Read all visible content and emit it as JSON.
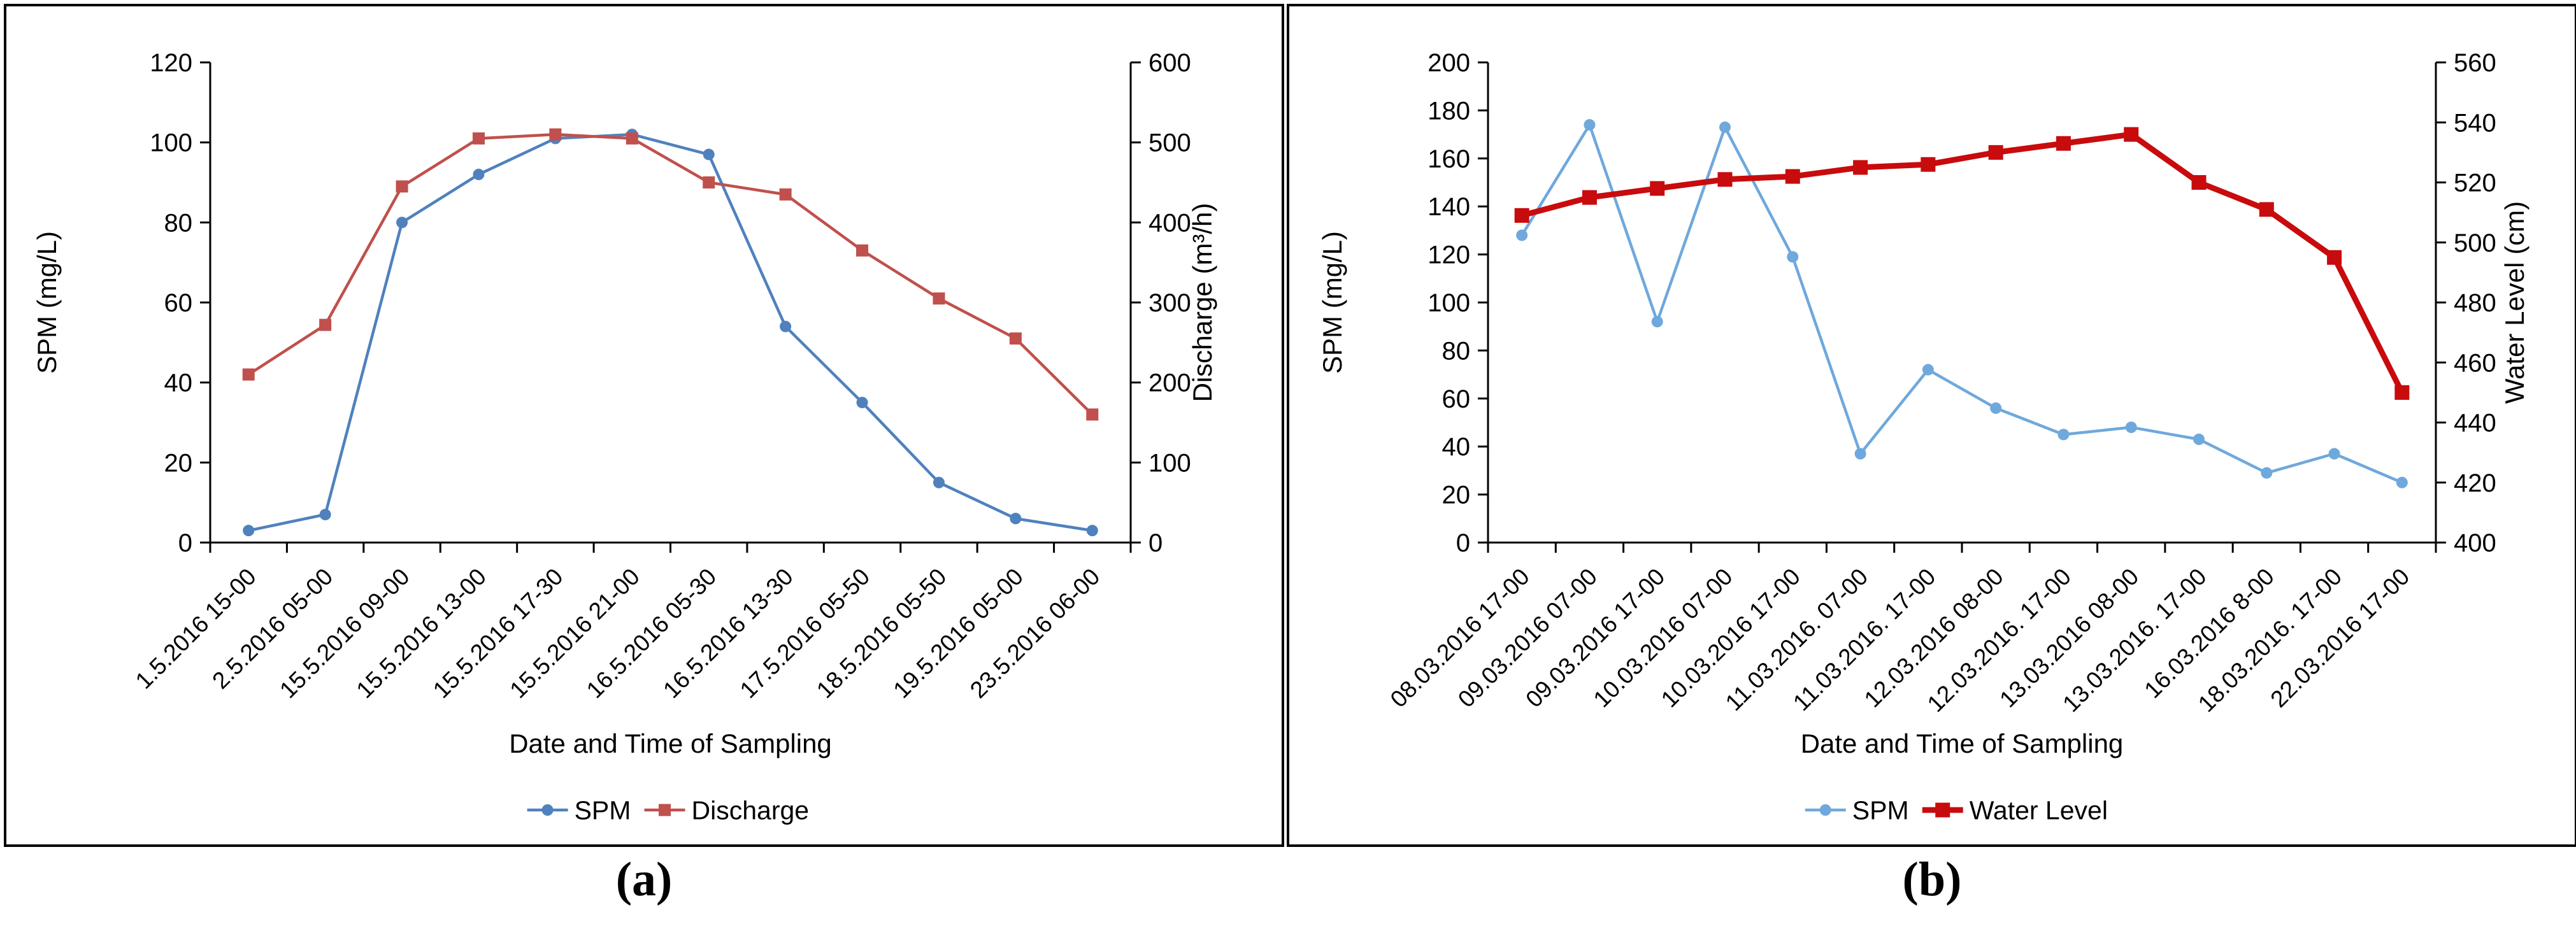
{
  "chart_data": [
    {
      "id": "a",
      "type": "line",
      "caption": "(a)",
      "x_title": "Date and Time of Sampling",
      "y_left": {
        "title": "SPM (mg/L)",
        "min": 0,
        "max": 120,
        "step": 20
      },
      "y_right": {
        "title": "Discharge (m³/h)",
        "min": 0,
        "max": 600,
        "step": 100
      },
      "categories": [
        "1.5.2016 15-00",
        "2.5.2016 05-00",
        "15.5.2016 09-00",
        "15.5.2016 13-00",
        "15.5.2016 17-30",
        "15.5.2016 21-00",
        "16.5.2016 05-30",
        "16.5.2016 13-30",
        "17.5.2016 05-50",
        "18.5.2016 05-50",
        "19.5.2016 05-00",
        "23.5.2016 06-00"
      ],
      "series": [
        {
          "name": "SPM",
          "axis": "left",
          "color": "#4f81bd",
          "marker": "circle",
          "values": [
            3,
            7,
            80,
            92,
            101,
            102,
            97,
            54,
            35,
            15,
            6,
            3
          ]
        },
        {
          "name": "Discharge",
          "axis": "right",
          "color": "#c0504d",
          "marker": "square",
          "values": [
            210,
            272,
            445,
            505,
            510,
            505,
            450,
            435,
            365,
            305,
            255,
            160
          ]
        }
      ],
      "legend_position": "bottom",
      "grid": "off"
    },
    {
      "id": "b",
      "type": "line",
      "caption": "(b)",
      "x_title": "Date and Time of Sampling",
      "y_left": {
        "title": "SPM (mg/L)",
        "min": 0,
        "max": 200,
        "step": 20
      },
      "y_right": {
        "title": "Water Level (cm)",
        "min": 400,
        "max": 560,
        "step": 20
      },
      "categories": [
        "08.03.2016 17-00",
        "09.03.2016 07-00",
        "09.03.2016 17-00",
        "10.03.2016 07-00",
        "10.03.2016 17-00",
        "11.03.2016. 07-00",
        "11.03.2016. 17-00",
        "12.03.2016 08-00",
        "12.03.2016. 17-00",
        "13.03.2016 08-00",
        "13.03.2016. 17-00",
        "16.03.2016 8-00",
        "18.03.2016. 17-00",
        "22.03.2016 17-00"
      ],
      "series": [
        {
          "name": "SPM",
          "axis": "left",
          "color": "#6fa8dc",
          "marker": "circle",
          "values": [
            128,
            174,
            92,
            173,
            119,
            37,
            72,
            56,
            45,
            48,
            43,
            29,
            37,
            25
          ]
        },
        {
          "name": "Water Level",
          "axis": "right",
          "color": "#c80b0d",
          "marker": "square",
          "values": [
            509,
            515,
            518,
            521,
            522,
            525,
            526,
            530,
            533,
            536,
            520,
            511,
            495,
            450
          ]
        }
      ],
      "legend_position": "bottom",
      "grid": "off"
    }
  ]
}
